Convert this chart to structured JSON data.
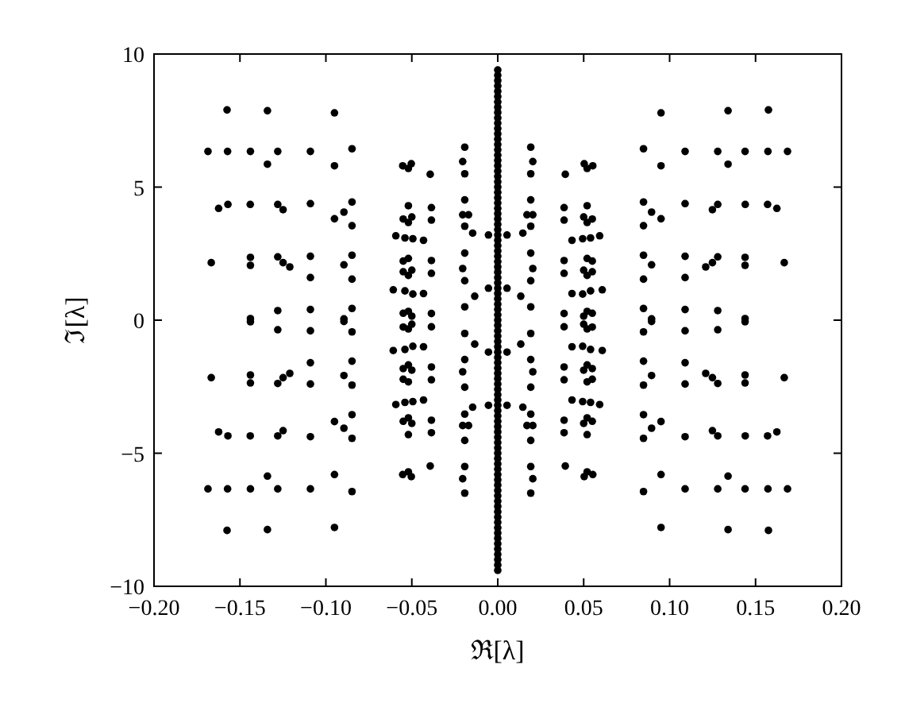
{
  "chart_data": {
    "type": "scatter",
    "xlabel": "ℜ[λ]",
    "ylabel": "ℑ[λ]",
    "xlim": [
      -0.2,
      0.2
    ],
    "ylim": [
      -10,
      10
    ],
    "xticks": [
      {
        "value": -0.2,
        "label": "−0.20"
      },
      {
        "value": -0.15,
        "label": "−0.15"
      },
      {
        "value": -0.1,
        "label": "−0.10"
      },
      {
        "value": -0.05,
        "label": "−0.05"
      },
      {
        "value": 0,
        "label": "0.00"
      },
      {
        "value": 0.05,
        "label": "0.05"
      },
      {
        "value": 0.1,
        "label": "0.10"
      },
      {
        "value": 0.15,
        "label": "0.15"
      },
      {
        "value": 0.2,
        "label": "0.20"
      }
    ],
    "yticks": [
      {
        "value": -10,
        "label": "−10"
      },
      {
        "value": -5,
        "label": "−5"
      },
      0,
      5,
      10
    ],
    "marker": "circle",
    "grid": false,
    "series": [
      {
        "color": "#000000",
        "x": [
          -0.1575,
          -0.134,
          -0.095,
          -0.1686,
          -0.1572,
          -0.1439,
          -0.128,
          -0.109,
          -0.0848,
          -0.134,
          -0.095,
          -0.0553,
          -0.0503,
          -0.052,
          -0.0393,
          -0.0192,
          -0.0204,
          -0.0192,
          -0.1624,
          -0.157,
          -0.144,
          -0.128,
          -0.1249,
          -0.109,
          -0.095,
          -0.0895,
          -0.0848,
          -0.0848,
          -0.052,
          -0.055,
          -0.05,
          -0.052,
          -0.0386,
          -0.0386,
          -0.0593,
          -0.054,
          -0.0494,
          -0.0432,
          -0.0192,
          -0.0204,
          -0.017,
          -0.0192,
          -0.0146,
          -0.0054,
          -0.0054,
          -0.1667,
          -0.1439,
          -0.1439,
          -0.128,
          -0.1249,
          -0.121,
          -0.109,
          -0.109,
          -0.0895,
          -0.0848,
          -0.0848,
          -0.055,
          -0.052,
          -0.055,
          -0.05,
          -0.052,
          -0.0386,
          -0.0386,
          -0.0608,
          -0.054,
          -0.0494,
          -0.0432,
          -0.0192,
          -0.0204,
          -0.0192,
          -0.0134,
          -0.0192,
          -0.055,
          -0.052,
          -0.05,
          -0.0386,
          -0.1439,
          -0.128,
          -0.109,
          -0.0895,
          -0.0848,
          0.1575,
          0.134,
          0.095,
          0.1686,
          0.1572,
          0.1439,
          0.128,
          0.109,
          0.0848,
          0.134,
          0.095,
          0.0553,
          0.0503,
          0.052,
          0.0393,
          0.0192,
          0.0204,
          0.0192,
          0.1624,
          0.157,
          0.144,
          0.128,
          0.1249,
          0.109,
          0.095,
          0.0895,
          0.0848,
          0.0848,
          0.052,
          0.055,
          0.05,
          0.052,
          0.0386,
          0.0386,
          0.0593,
          0.054,
          0.0494,
          0.0432,
          0.0192,
          0.0204,
          0.017,
          0.0192,
          0.0146,
          0.0054,
          0.0054,
          0.1667,
          0.1439,
          0.1439,
          0.128,
          0.1249,
          0.121,
          0.109,
          0.109,
          0.0895,
          0.0848,
          0.0848,
          0.055,
          0.052,
          0.055,
          0.05,
          0.052,
          0.0386,
          0.0386,
          0.0608,
          0.054,
          0.0494,
          0.0432,
          0.0192,
          0.0204,
          0.0192,
          0.0134,
          0.0192,
          0.055,
          0.052,
          0.05,
          0.0386,
          0.1439,
          0.128,
          0.109,
          0.0895,
          0.0848,
          -0.1575,
          -0.134,
          -0.095,
          -0.1686,
          -0.1572,
          -0.1439,
          -0.128,
          -0.109,
          -0.0848,
          -0.134,
          -0.095,
          -0.0553,
          -0.0503,
          -0.052,
          -0.0393,
          -0.0192,
          -0.0204,
          -0.0192,
          -0.1624,
          -0.157,
          -0.144,
          -0.128,
          -0.1249,
          -0.109,
          -0.095,
          -0.0895,
          -0.0848,
          -0.0848,
          -0.052,
          -0.055,
          -0.05,
          -0.052,
          -0.0386,
          -0.0386,
          -0.0593,
          -0.054,
          -0.0494,
          -0.0432,
          -0.0192,
          -0.0204,
          -0.017,
          -0.0192,
          -0.0146,
          -0.0054,
          -0.0054,
          -0.1667,
          -0.1439,
          -0.1439,
          -0.128,
          -0.1249,
          -0.121,
          -0.109,
          -0.109,
          -0.0895,
          -0.0848,
          -0.0848,
          -0.055,
          -0.052,
          -0.055,
          -0.05,
          -0.052,
          -0.0386,
          -0.0386,
          -0.0608,
          -0.054,
          -0.0494,
          -0.0432,
          -0.0192,
          -0.0204,
          -0.0192,
          -0.0134,
          -0.0192,
          -0.055,
          -0.052,
          -0.05,
          -0.0386,
          -0.1439,
          -0.128,
          -0.109,
          -0.0895,
          -0.0848,
          0.1575,
          0.134,
          0.095,
          0.1686,
          0.1572,
          0.1439,
          0.128,
          0.109,
          0.0848,
          0.134,
          0.095,
          0.0553,
          0.0503,
          0.052,
          0.0393,
          0.0192,
          0.0204,
          0.0192,
          0.1624,
          0.157,
          0.144,
          0.128,
          0.1249,
          0.109,
          0.095,
          0.0895,
          0.0848,
          0.0848,
          0.052,
          0.055,
          0.05,
          0.052,
          0.0386,
          0.0386,
          0.0593,
          0.054,
          0.0494,
          0.0432,
          0.0192,
          0.0204,
          0.017,
          0.0192,
          0.0146,
          0.0054,
          0.0054,
          0.1667,
          0.1439,
          0.1439,
          0.128,
          0.1249,
          0.121,
          0.109,
          0.109,
          0.0895,
          0.0848,
          0.0848,
          0.055,
          0.052,
          0.055,
          0.05,
          0.052,
          0.0386,
          0.0386,
          0.0608,
          0.054,
          0.0494,
          0.0432,
          0.0192,
          0.0204,
          0.0192,
          0.0134,
          0.0192,
          0.055,
          0.052,
          0.05,
          0.0386,
          0.1439,
          0.128,
          0.109,
          0.0895,
          0.0848,
          0,
          0,
          0,
          0,
          0,
          0,
          0,
          0,
          0,
          0,
          0,
          0,
          0,
          0,
          0,
          0,
          0,
          0,
          0,
          0,
          0,
          0,
          0,
          0,
          0,
          0,
          0,
          0,
          0,
          0,
          0,
          0,
          0,
          0,
          0,
          0,
          0,
          0,
          0,
          0,
          0,
          0,
          0,
          0,
          0,
          0,
          0,
          0,
          0,
          0,
          0,
          0,
          0,
          0,
          0,
          0,
          0,
          0,
          0,
          0,
          0,
          0,
          0,
          0,
          0,
          0,
          0,
          0,
          0,
          0,
          0,
          0,
          0,
          0,
          0,
          0,
          0,
          0,
          0,
          0,
          0,
          0,
          0,
          0,
          0,
          0,
          0,
          0,
          0,
          0,
          0,
          0,
          0,
          0,
          0
        ],
        "values": [
          7.9,
          7.87,
          7.79,
          6.34,
          6.34,
          6.34,
          6.34,
          6.34,
          6.44,
          5.86,
          5.8,
          5.8,
          5.88,
          5.7,
          5.48,
          6.5,
          5.96,
          5.5,
          4.2,
          4.35,
          4.35,
          4.35,
          4.15,
          4.38,
          3.81,
          4.06,
          4.44,
          3.55,
          4.3,
          3.8,
          3.88,
          3.67,
          4.23,
          3.76,
          3.17,
          3.09,
          3.06,
          3.0,
          4.52,
          3.96,
          3.96,
          3.53,
          3.27,
          3.2,
          1.2,
          2.16,
          2.36,
          2.06,
          2.38,
          2.16,
          2.0,
          2.4,
          1.6,
          2.08,
          2.44,
          1.54,
          2.22,
          2.32,
          1.82,
          1.88,
          1.68,
          2.24,
          1.76,
          1.14,
          1.1,
          0.98,
          1.0,
          2.52,
          1.94,
          1.48,
          0.9,
          0.5,
          0.26,
          0.33,
          0.15,
          0.25,
          0.06,
          0.36,
          0.4,
          0.05,
          0.44,
          7.9,
          7.87,
          7.79,
          6.34,
          6.34,
          6.34,
          6.34,
          6.34,
          6.44,
          5.86,
          5.8,
          5.8,
          5.88,
          5.7,
          5.48,
          6.5,
          5.96,
          5.5,
          4.2,
          4.35,
          4.35,
          4.35,
          4.15,
          4.38,
          3.81,
          4.06,
          4.44,
          3.55,
          4.3,
          3.8,
          3.88,
          3.67,
          4.23,
          3.76,
          3.17,
          3.09,
          3.06,
          3.0,
          4.52,
          3.96,
          3.96,
          3.53,
          3.27,
          3.2,
          1.2,
          2.16,
          2.36,
          2.06,
          2.38,
          2.16,
          2.0,
          2.4,
          1.6,
          2.08,
          2.44,
          1.54,
          2.22,
          2.32,
          1.82,
          1.88,
          1.68,
          2.24,
          1.76,
          1.14,
          1.1,
          0.98,
          1.0,
          2.52,
          1.94,
          1.48,
          0.9,
          0.5,
          0.26,
          0.33,
          0.15,
          0.25,
          0.06,
          0.36,
          0.4,
          0.05,
          0.44,
          -7.9,
          -7.87,
          -7.79,
          -6.34,
          -6.34,
          -6.34,
          -6.34,
          -6.34,
          -6.44,
          -5.86,
          -5.8,
          -5.8,
          -5.88,
          -5.7,
          -5.48,
          -6.5,
          -5.96,
          -5.5,
          -4.2,
          -4.35,
          -4.35,
          -4.35,
          -4.15,
          -4.38,
          -3.81,
          -4.06,
          -4.44,
          -3.55,
          -4.3,
          -3.8,
          -3.88,
          -3.67,
          -4.23,
          -3.76,
          -3.17,
          -3.09,
          -3.06,
          -3.0,
          -4.52,
          -3.96,
          -3.96,
          -3.53,
          -3.27,
          -3.2,
          -1.2,
          -2.16,
          -2.36,
          -2.06,
          -2.38,
          -2.16,
          -2.0,
          -2.4,
          -1.6,
          -2.08,
          -2.44,
          -1.54,
          -2.22,
          -2.32,
          -1.82,
          -1.88,
          -1.68,
          -2.24,
          -1.76,
          -1.14,
          -1.1,
          -0.98,
          -1.0,
          -2.52,
          -1.94,
          -1.48,
          -0.9,
          -0.5,
          -0.26,
          -0.33,
          -0.15,
          -0.25,
          -0.06,
          -0.36,
          -0.4,
          -0.05,
          -0.44,
          -7.9,
          -7.87,
          -7.79,
          -6.34,
          -6.34,
          -6.34,
          -6.34,
          -6.34,
          -6.44,
          -5.86,
          -5.8,
          -5.8,
          -5.88,
          -5.7,
          -5.48,
          -6.5,
          -5.96,
          -5.5,
          -4.2,
          -4.35,
          -4.35,
          -4.35,
          -4.15,
          -4.38,
          -3.81,
          -4.06,
          -4.44,
          -3.55,
          -4.3,
          -3.8,
          -3.88,
          -3.67,
          -4.23,
          -3.76,
          -3.17,
          -3.09,
          -3.06,
          -3.0,
          -4.52,
          -3.96,
          -3.96,
          -3.53,
          -3.27,
          -3.2,
          -1.2,
          -2.16,
          -2.36,
          -2.06,
          -2.38,
          -2.16,
          -2.0,
          -2.4,
          -1.6,
          -2.08,
          -2.44,
          -1.54,
          -2.22,
          -2.32,
          -1.82,
          -1.88,
          -1.68,
          -2.24,
          -1.76,
          -1.14,
          -1.1,
          -0.98,
          -1.0,
          -2.52,
          -1.94,
          -1.48,
          -0.9,
          -0.5,
          -0.26,
          -0.33,
          -0.15,
          -0.25,
          -0.06,
          -0.36,
          -0.4,
          -0.05,
          -0.44,
          -9.4,
          -9.2,
          -9.0,
          -8.8,
          -8.6,
          -8.4,
          -8.2,
          -8.0,
          -7.8,
          -7.6,
          -7.4,
          -7.2,
          -7.0,
          -6.8,
          -6.6,
          -6.4,
          -6.2,
          -6.0,
          -5.8,
          -5.6,
          -5.4,
          -5.2,
          -5.0,
          -4.8,
          -4.6,
          -4.4,
          -4.2,
          -4.0,
          -3.8,
          -3.6,
          -3.4,
          -3.2,
          -3.0,
          -2.8,
          -2.6,
          -2.4,
          -2.2,
          -2.0,
          -1.8,
          -1.6,
          -1.4,
          -1.2,
          -1.0,
          -0.8,
          -0.6,
          -0.4,
          -0.2,
          0,
          0.2,
          0.4,
          0.6,
          0.8,
          1.0,
          1.2,
          1.4,
          1.6,
          1.8,
          2.0,
          2.2,
          2.4,
          2.6,
          2.8,
          3.0,
          3.2,
          3.4,
          3.6,
          3.8,
          4.0,
          4.2,
          4.4,
          4.6,
          4.8,
          5.0,
          5.2,
          5.4,
          5.6,
          5.8,
          6.0,
          6.2,
          6.4,
          6.6,
          6.8,
          7.0,
          7.2,
          7.4,
          7.6,
          7.8,
          8.0,
          8.2,
          8.4,
          8.6,
          8.8,
          9.0,
          9.2,
          9.4
        ]
      }
    ]
  }
}
